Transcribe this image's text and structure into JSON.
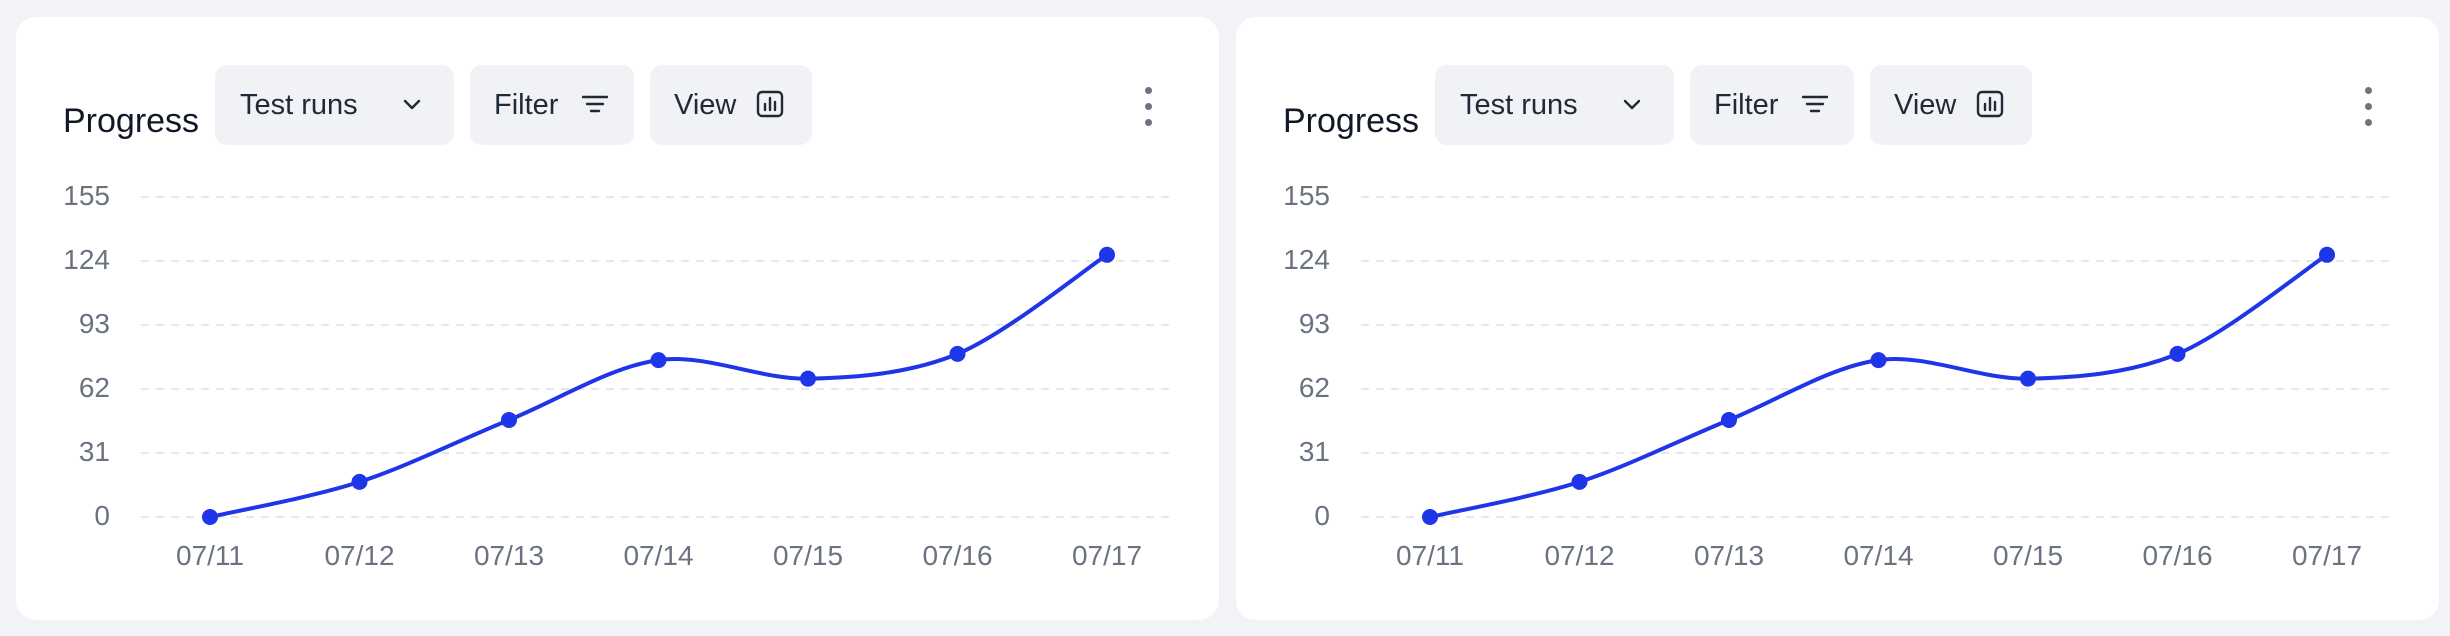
{
  "panels": [
    {
      "title": "Progress",
      "select_label": "Test runs",
      "filter_label": "Filter",
      "view_label": "View"
    },
    {
      "title": "Progress",
      "select_label": "Test runs",
      "filter_label": "Filter",
      "view_label": "View"
    }
  ],
  "colors": {
    "line": "#1f35e8",
    "grid": "#e5e7eb",
    "axis_text": "#6b7280",
    "button_bg": "#f0f2f5",
    "page_bg": "#f1f3f7"
  },
  "icons": [
    "chevron-down-icon",
    "filter-icon",
    "bar-chart-icon",
    "more-vertical-icon"
  ],
  "chart_data": [
    {
      "type": "line",
      "categories": [
        "07/11",
        "07/12",
        "07/13",
        "07/14",
        "07/15",
        "07/16",
        "07/17"
      ],
      "series": [
        {
          "values": [
            0,
            17,
            47,
            76,
            67,
            79,
            127
          ]
        }
      ],
      "y_ticks": [
        0,
        31,
        62,
        93,
        124,
        155
      ],
      "ylim": [
        0,
        155
      ],
      "grid": true
    },
    {
      "type": "line",
      "categories": [
        "07/11",
        "07/12",
        "07/13",
        "07/14",
        "07/15",
        "07/16",
        "07/17"
      ],
      "series": [
        {
          "values": [
            0,
            17,
            47,
            76,
            67,
            79,
            127
          ]
        }
      ],
      "y_ticks": [
        0,
        31,
        62,
        93,
        124,
        155
      ],
      "ylim": [
        0,
        155
      ],
      "grid": true
    }
  ]
}
